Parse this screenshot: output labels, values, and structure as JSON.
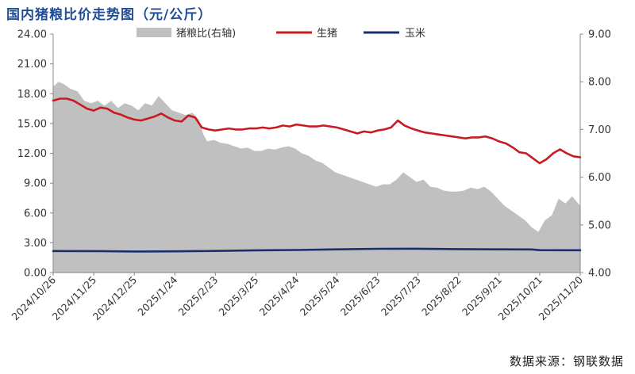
{
  "chart_data": {
    "type": "line",
    "title": "国内猪粮比价走势图（元/公斤）",
    "source": "数据来源：钢联数据",
    "left_axis": {
      "min": 0,
      "max": 24,
      "ticks": [
        0,
        3,
        6,
        9,
        12,
        15,
        18,
        21,
        24
      ],
      "tick_labels": [
        "0.00",
        "3.00",
        "6.00",
        "9.00",
        "12.00",
        "15.00",
        "18.00",
        "21.00",
        "24.00"
      ]
    },
    "right_axis": {
      "min": 4,
      "max": 9,
      "ticks": [
        4,
        5,
        6,
        7,
        8,
        9
      ],
      "tick_labels": [
        "4.00",
        "5.00",
        "6.00",
        "7.00",
        "8.00",
        "9.00"
      ]
    },
    "x_axis": {
      "start": "2024-10-26",
      "end": "2025-11-20",
      "tick_dates": [
        "2024-10-26",
        "2024-11-25",
        "2024-12-25",
        "2025-01-24",
        "2025-02-23",
        "2025-03-25",
        "2025-04-24",
        "2025-05-24",
        "2025-06-23",
        "2025-07-23",
        "2025-08-22",
        "2025-09-21",
        "2025-10-21",
        "2025-11-20"
      ],
      "tick_labels": [
        "2024/10/26",
        "2024/11/25",
        "2024/12/25",
        "2025/1/24",
        "2025/2/23",
        "2025/3/25",
        "2025/4/24",
        "2025/5/24",
        "2025/6/23",
        "2025/7/23",
        "2025/8/22",
        "2025/9/21",
        "2025/10/21",
        "2025/11/20"
      ]
    },
    "legend": {
      "position": "top"
    },
    "series": [
      {
        "name": "猪粮比(右轴)",
        "type": "area",
        "axis": "right",
        "color": "#c0c0c0",
        "x": [
          "2024-10-26",
          "2024-10-30",
          "2024-11-03",
          "2024-11-08",
          "2024-11-13",
          "2024-11-18",
          "2024-11-23",
          "2024-11-28",
          "2024-12-03",
          "2024-12-08",
          "2024-12-13",
          "2024-12-18",
          "2024-12-23",
          "2024-12-28",
          "2025-01-02",
          "2025-01-07",
          "2025-01-12",
          "2025-01-17",
          "2025-01-22",
          "2025-01-27",
          "2025-02-01",
          "2025-02-06",
          "2025-02-11",
          "2025-02-14",
          "2025-02-17",
          "2025-02-22",
          "2025-02-27",
          "2025-03-04",
          "2025-03-09",
          "2025-03-14",
          "2025-03-19",
          "2025-03-24",
          "2025-03-29",
          "2025-04-03",
          "2025-04-08",
          "2025-04-13",
          "2025-04-18",
          "2025-04-23",
          "2025-04-28",
          "2025-05-03",
          "2025-05-08",
          "2025-05-13",
          "2025-05-18",
          "2025-05-23",
          "2025-05-28",
          "2025-06-02",
          "2025-06-07",
          "2025-06-12",
          "2025-06-17",
          "2025-06-22",
          "2025-06-27",
          "2025-07-02",
          "2025-07-07",
          "2025-07-12",
          "2025-07-17",
          "2025-07-22",
          "2025-07-27",
          "2025-08-01",
          "2025-08-06",
          "2025-08-11",
          "2025-08-16",
          "2025-08-21",
          "2025-08-26",
          "2025-08-31",
          "2025-09-05",
          "2025-09-10",
          "2025-09-15",
          "2025-09-20",
          "2025-09-25",
          "2025-09-30",
          "2025-10-05",
          "2025-10-10",
          "2025-10-15",
          "2025-10-20",
          "2025-10-25",
          "2025-10-30",
          "2025-11-04",
          "2025-11-09",
          "2025-11-14",
          "2025-11-20"
        ],
        "values": [
          7.9,
          8.0,
          7.95,
          7.85,
          7.8,
          7.6,
          7.55,
          7.6,
          7.5,
          7.6,
          7.45,
          7.55,
          7.5,
          7.4,
          7.55,
          7.5,
          7.7,
          7.55,
          7.4,
          7.35,
          7.3,
          7.35,
          7.2,
          6.9,
          6.75,
          6.78,
          6.72,
          6.7,
          6.65,
          6.6,
          6.62,
          6.55,
          6.55,
          6.6,
          6.58,
          6.62,
          6.65,
          6.6,
          6.5,
          6.45,
          6.35,
          6.3,
          6.2,
          6.1,
          6.05,
          6.0,
          5.95,
          5.9,
          5.85,
          5.8,
          5.85,
          5.85,
          5.95,
          6.1,
          6.0,
          5.9,
          5.95,
          5.8,
          5.78,
          5.72,
          5.7,
          5.7,
          5.72,
          5.78,
          5.75,
          5.8,
          5.7,
          5.55,
          5.4,
          5.3,
          5.2,
          5.1,
          4.95,
          4.85,
          5.1,
          5.2,
          5.55,
          5.45,
          5.6,
          5.4
        ]
      },
      {
        "name": "生猪",
        "type": "line",
        "axis": "left",
        "color": "#c81b20",
        "x": [
          "2024-10-26",
          "2024-10-31",
          "2024-11-05",
          "2024-11-10",
          "2024-11-15",
          "2024-11-20",
          "2024-11-25",
          "2024-11-30",
          "2024-12-05",
          "2024-12-10",
          "2024-12-15",
          "2024-12-20",
          "2024-12-25",
          "2024-12-30",
          "2025-01-04",
          "2025-01-09",
          "2025-01-14",
          "2025-01-19",
          "2025-01-24",
          "2025-01-29",
          "2025-02-03",
          "2025-02-08",
          "2025-02-13",
          "2025-02-18",
          "2025-02-23",
          "2025-02-28",
          "2025-03-05",
          "2025-03-10",
          "2025-03-15",
          "2025-03-20",
          "2025-03-25",
          "2025-03-30",
          "2025-04-04",
          "2025-04-09",
          "2025-04-14",
          "2025-04-19",
          "2025-04-24",
          "2025-04-29",
          "2025-05-04",
          "2025-05-09",
          "2025-05-14",
          "2025-05-19",
          "2025-05-24",
          "2025-05-29",
          "2025-06-03",
          "2025-06-08",
          "2025-06-13",
          "2025-06-18",
          "2025-06-23",
          "2025-06-28",
          "2025-07-03",
          "2025-07-08",
          "2025-07-13",
          "2025-07-18",
          "2025-07-23",
          "2025-07-28",
          "2025-08-02",
          "2025-08-07",
          "2025-08-12",
          "2025-08-17",
          "2025-08-22",
          "2025-08-27",
          "2025-09-01",
          "2025-09-06",
          "2025-09-11",
          "2025-09-16",
          "2025-09-21",
          "2025-09-26",
          "2025-10-01",
          "2025-10-06",
          "2025-10-11",
          "2025-10-16",
          "2025-10-21",
          "2025-10-26",
          "2025-10-31",
          "2025-11-05",
          "2025-11-10",
          "2025-11-15",
          "2025-11-20"
        ],
        "values": [
          17.3,
          17.5,
          17.5,
          17.3,
          16.9,
          16.5,
          16.3,
          16.6,
          16.5,
          16.1,
          15.9,
          15.6,
          15.4,
          15.3,
          15.5,
          15.7,
          16.0,
          15.6,
          15.3,
          15.2,
          15.8,
          15.6,
          14.6,
          14.4,
          14.3,
          14.4,
          14.5,
          14.4,
          14.4,
          14.5,
          14.5,
          14.6,
          14.5,
          14.6,
          14.8,
          14.7,
          14.9,
          14.8,
          14.7,
          14.7,
          14.8,
          14.7,
          14.6,
          14.4,
          14.2,
          14.0,
          14.2,
          14.1,
          14.3,
          14.4,
          14.6,
          15.3,
          14.8,
          14.5,
          14.3,
          14.1,
          14.0,
          13.9,
          13.8,
          13.7,
          13.6,
          13.5,
          13.6,
          13.6,
          13.7,
          13.5,
          13.2,
          13.0,
          12.6,
          12.1,
          12.0,
          11.5,
          11.0,
          11.4,
          12.0,
          12.4,
          12.0,
          11.7,
          11.6
        ]
      },
      {
        "name": "玉米",
        "type": "line",
        "axis": "left",
        "color": "#1a2e6e",
        "x": [
          "2024-10-26",
          "2024-11-25",
          "2024-12-25",
          "2025-01-24",
          "2025-02-23",
          "2025-03-25",
          "2025-04-24",
          "2025-05-24",
          "2025-06-23",
          "2025-07-23",
          "2025-08-22",
          "2025-09-21",
          "2025-10-15",
          "2025-10-21",
          "2025-11-20"
        ],
        "values": [
          2.17,
          2.16,
          2.12,
          2.14,
          2.18,
          2.24,
          2.27,
          2.34,
          2.39,
          2.4,
          2.36,
          2.34,
          2.33,
          2.26,
          2.25
        ]
      }
    ]
  }
}
